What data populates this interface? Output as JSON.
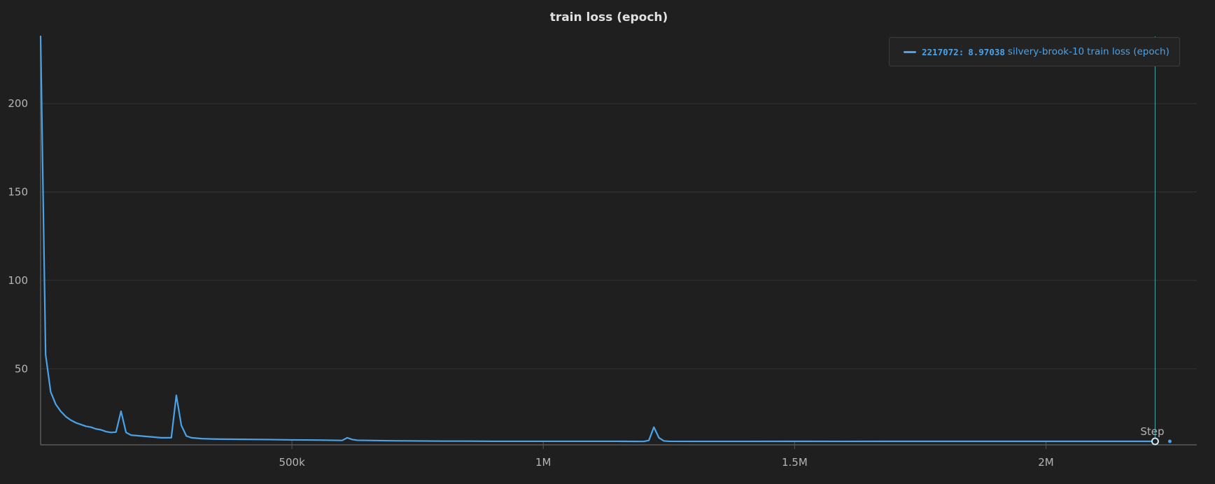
{
  "chart_data": {
    "type": "line",
    "title": "train loss (epoch)",
    "xlabel": "Step",
    "ylabel": "",
    "xlim": [
      0,
      2300000
    ],
    "ylim": [
      7,
      238
    ],
    "x_ticks": [
      {
        "value": 500000,
        "label": "500k"
      },
      {
        "value": 1000000,
        "label": "1M"
      },
      {
        "value": 1500000,
        "label": "1.5M"
      },
      {
        "value": 2000000,
        "label": "2M"
      }
    ],
    "y_ticks": [
      {
        "value": 50,
        "label": "50"
      },
      {
        "value": 100,
        "label": "100"
      },
      {
        "value": 150,
        "label": "150"
      },
      {
        "value": 200,
        "label": "200"
      }
    ],
    "grid": true,
    "legend_position": "top-right",
    "series": [
      {
        "name": "silvery-brook-10 train loss (epoch)",
        "color": "#4aa3e8",
        "x": [
          0,
          10000,
          20000,
          30000,
          40000,
          50000,
          60000,
          70000,
          80000,
          90000,
          100000,
          110000,
          120000,
          130000,
          140000,
          150000,
          160000,
          170000,
          180000,
          200000,
          220000,
          240000,
          250000,
          260000,
          270000,
          280000,
          290000,
          300000,
          320000,
          340000,
          360000,
          400000,
          450000,
          500000,
          550000,
          600000,
          610000,
          620000,
          630000,
          650000,
          700000,
          750000,
          800000,
          850000,
          900000,
          950000,
          1000000,
          1050000,
          1100000,
          1150000,
          1200000,
          1210000,
          1220000,
          1230000,
          1240000,
          1250000,
          1300000,
          1400000,
          1500000,
          1600000,
          1700000,
          1800000,
          1900000,
          2000000,
          2100000,
          2200000,
          2217072
        ],
        "y": [
          238,
          58,
          37,
          30,
          26,
          23,
          21,
          19.5,
          18.5,
          17.5,
          17,
          16,
          15.5,
          14.5,
          14,
          14.2,
          26,
          14,
          12.5,
          12,
          11.5,
          11,
          11,
          11,
          35,
          18,
          12,
          11,
          10.5,
          10.3,
          10.2,
          10.1,
          10,
          9.8,
          9.7,
          9.5,
          11,
          10,
          9.6,
          9.5,
          9.3,
          9.2,
          9.1,
          9.1,
          9.0,
          9.0,
          9.0,
          9.0,
          9.0,
          9.0,
          8.9,
          9.5,
          17,
          11,
          9.2,
          9.0,
          8.95,
          8.95,
          8.97,
          8.96,
          8.97,
          8.97,
          8.97,
          8.97,
          8.97,
          8.97,
          8.97038
        ]
      }
    ],
    "hover_step": 2217072,
    "hover_value": 8.97038
  },
  "legend": {
    "step": "2217072",
    "value": "8.97038",
    "run_name": "silvery-brook-10",
    "metric": "train loss (epoch)",
    "swatch_color": "#4aa3e8"
  }
}
